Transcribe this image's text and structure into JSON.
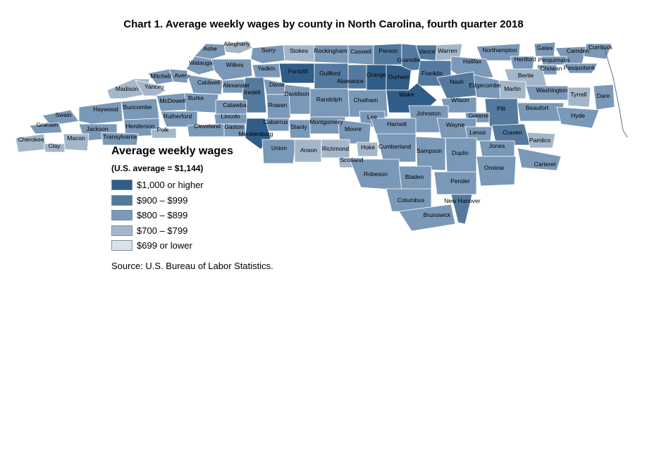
{
  "title": "Chart 1. Average weekly wages by county in North Carolina, fourth quarter 2018",
  "legend": {
    "title": "Average weekly wages",
    "subtitle": "(U.S. average = $1,144)",
    "items": [
      {
        "label": "$1,000 or higher",
        "color": "#2f5d87"
      },
      {
        "label": "$900 – $999",
        "color": "#537a9e"
      },
      {
        "label": "$800 – $899",
        "color": "#7a98b7"
      },
      {
        "label": "$700 – $799",
        "color": "#a4b7ca"
      },
      {
        "label": "$699 or lower",
        "color": "#d8e3e8"
      }
    ]
  },
  "source": "Source: U.S. Bureau of Labor Statistics.",
  "counties": [
    {
      "name": "Alleghany",
      "tier": 4
    },
    {
      "name": "Ashe",
      "tier": 3
    },
    {
      "name": "Surry",
      "tier": 3
    },
    {
      "name": "Stokes",
      "tier": 4
    },
    {
      "name": "Rockingham",
      "tier": 3
    },
    {
      "name": "Caswell",
      "tier": 3
    },
    {
      "name": "Person",
      "tier": 2
    },
    {
      "name": "Vance",
      "tier": 2
    },
    {
      "name": "Warren",
      "tier": 4
    },
    {
      "name": "Northampton",
      "tier": 3
    },
    {
      "name": "Gates",
      "tier": 3
    },
    {
      "name": "Camden",
      "tier": 3
    },
    {
      "name": "Currituck",
      "tier": 3
    },
    {
      "name": "Watauga",
      "tier": 3
    },
    {
      "name": "Wilkes",
      "tier": 3
    },
    {
      "name": "Yadkin",
      "tier": 3
    },
    {
      "name": "Forsyth",
      "tier": 1
    },
    {
      "name": "Guilford",
      "tier": 2
    },
    {
      "name": "Alamance",
      "tier": 2
    },
    {
      "name": "Orange",
      "tier": 1
    },
    {
      "name": "Durham",
      "tier": 1
    },
    {
      "name": "Granville",
      "tier": 2
    },
    {
      "name": "Franklin",
      "tier": 2
    },
    {
      "name": "Halifax",
      "tier": 3
    },
    {
      "name": "Hertford",
      "tier": 3
    },
    {
      "name": "Perquimans",
      "tier": 3
    },
    {
      "name": "Chowan",
      "tier": 3
    },
    {
      "name": "Pasquotank",
      "tier": 3
    },
    {
      "name": "Bertie",
      "tier": 4
    },
    {
      "name": "Mitchell",
      "tier": 3
    },
    {
      "name": "Avery",
      "tier": 3
    },
    {
      "name": "Caldwell",
      "tier": 3
    },
    {
      "name": "Alexander",
      "tier": 3
    },
    {
      "name": "Iredell",
      "tier": 2
    },
    {
      "name": "Davie",
      "tier": 3
    },
    {
      "name": "Davidson",
      "tier": 3
    },
    {
      "name": "Randolph",
      "tier": 3
    },
    {
      "name": "Chatham",
      "tier": 3
    },
    {
      "name": "Wake",
      "tier": 1
    },
    {
      "name": "Nash",
      "tier": 2
    },
    {
      "name": "Edgecombe",
      "tier": 3
    },
    {
      "name": "Martin",
      "tier": 4
    },
    {
      "name": "Washington",
      "tier": 3
    },
    {
      "name": "Tyrrell",
      "tier": 4
    },
    {
      "name": "Dare",
      "tier": 3
    },
    {
      "name": "Madison",
      "tier": 4
    },
    {
      "name": "Yancey",
      "tier": 4
    },
    {
      "name": "McDowell",
      "tier": 3
    },
    {
      "name": "Burke",
      "tier": 3
    },
    {
      "name": "Catawba",
      "tier": 3
    },
    {
      "name": "Rowan",
      "tier": 3
    },
    {
      "name": "Wilson",
      "tier": 3
    },
    {
      "name": "Pitt",
      "tier": 2
    },
    {
      "name": "Beaufort",
      "tier": 3
    },
    {
      "name": "Hyde",
      "tier": 3
    },
    {
      "name": "Swain",
      "tier": 3
    },
    {
      "name": "Haywood",
      "tier": 3
    },
    {
      "name": "Buncombe",
      "tier": 3
    },
    {
      "name": "Rutherford",
      "tier": 3
    },
    {
      "name": "Lincoln",
      "tier": 3
    },
    {
      "name": "Cabarrus",
      "tier": 3
    },
    {
      "name": "Montgomery",
      "tier": 3
    },
    {
      "name": "Lee",
      "tier": 3
    },
    {
      "name": "Johnston",
      "tier": 3
    },
    {
      "name": "Greene",
      "tier": 3
    },
    {
      "name": "Graham",
      "tier": 3
    },
    {
      "name": "Jackson",
      "tier": 3
    },
    {
      "name": "Henderson",
      "tier": 3
    },
    {
      "name": "Polk",
      "tier": 4
    },
    {
      "name": "Cleveland",
      "tier": 3
    },
    {
      "name": "Gaston",
      "tier": 3
    },
    {
      "name": "Mecklenburg",
      "tier": 1
    },
    {
      "name": "Stanly",
      "tier": 3
    },
    {
      "name": "Moore",
      "tier": 3
    },
    {
      "name": "Harnett",
      "tier": 3
    },
    {
      "name": "Wayne",
      "tier": 3
    },
    {
      "name": "Lenoir",
      "tier": 3
    },
    {
      "name": "Craven",
      "tier": 2
    },
    {
      "name": "Pamlico",
      "tier": 4
    },
    {
      "name": "Cherokee",
      "tier": 4
    },
    {
      "name": "Clay",
      "tier": 4
    },
    {
      "name": "Macon",
      "tier": 4
    },
    {
      "name": "Transylvania",
      "tier": 3
    },
    {
      "name": "Union",
      "tier": 3
    },
    {
      "name": "Anson",
      "tier": 4
    },
    {
      "name": "Richmond",
      "tier": 4
    },
    {
      "name": "Hoke",
      "tier": 4
    },
    {
      "name": "Cumberland",
      "tier": 3
    },
    {
      "name": "Sampson",
      "tier": 3
    },
    {
      "name": "Duplin",
      "tier": 3
    },
    {
      "name": "Jones",
      "tier": 3
    },
    {
      "name": "Carteret",
      "tier": 3
    },
    {
      "name": "Onslow",
      "tier": 3
    },
    {
      "name": "Scotland",
      "tier": 4
    },
    {
      "name": "Robeson",
      "tier": 3
    },
    {
      "name": "Bladen",
      "tier": 3
    },
    {
      "name": "Pender",
      "tier": 3
    },
    {
      "name": "Columbus",
      "tier": 3
    },
    {
      "name": "New Hanover",
      "tier": 2
    },
    {
      "name": "Brunswick",
      "tier": 3
    }
  ]
}
